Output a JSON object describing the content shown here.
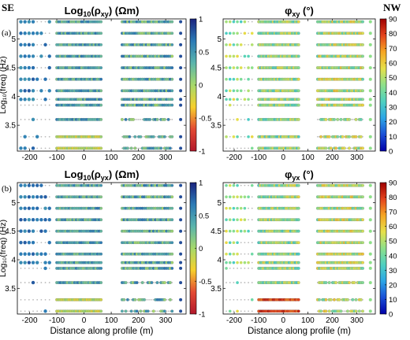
{
  "figure": {
    "orientation_left": "SE",
    "orientation_right": "NW",
    "row_labels": [
      "(a)",
      "(b)"
    ],
    "ylabel": "Log₁₀(freq) (Hz)",
    "xlabel": "Distance along profile (m)"
  },
  "colors": {
    "diverging": [
      "#b2182b",
      "#e34a33",
      "#f7d02c",
      "#a6d96a",
      "#5ab4ac",
      "#2c7bb6",
      "#1a237e"
    ],
    "jet": [
      "#0000a8",
      "#1a4fd6",
      "#2ca6e6",
      "#4fd0c0",
      "#8ee08a",
      "#e6e04a",
      "#f5a623",
      "#e4431d",
      "#9e0000"
    ],
    "inactive_dot": "#bbbbbb"
  },
  "panels": [
    {
      "id": "rho-xy",
      "title_main": "Log",
      "title_sub": "10",
      "title_arg": "(ρ",
      "title_arg_sub": "xy",
      "title_unit": ") (Ωm)",
      "colormap": "diverging"
    },
    {
      "id": "phi-xy",
      "title_main": "φ",
      "title_sub": "xy",
      "title_unit": " (°)",
      "colormap": "jet"
    },
    {
      "id": "rho-yx",
      "title_main": "Log",
      "title_sub": "10",
      "title_arg": "(ρ",
      "title_arg_sub": "yx",
      "title_unit": ") (Ωm)",
      "colormap": "diverging"
    },
    {
      "id": "phi-yx",
      "title_main": "φ",
      "title_sub": "yx",
      "title_unit": " (°)",
      "colormap": "jet"
    }
  ],
  "chart_data": [
    {
      "type": "scatter",
      "panel": "rho-xy",
      "title": "Log10(ρxy) (Ωm)",
      "xlabel": "",
      "ylabel": "Log10(freq) (Hz)",
      "xlim": [
        -245,
        375
      ],
      "ylim": [
        3.05,
        5.35
      ],
      "xticks": [
        "-200",
        "-100",
        "0",
        "100",
        "200",
        "300"
      ],
      "yticks": [
        "3.5",
        "4",
        "4.5",
        "5"
      ],
      "colorbar": {
        "min": -1,
        "max": 1,
        "ticks": [
          "-1",
          "-0.5",
          "0",
          "0.5",
          "1"
        ]
      },
      "frequencies": [
        5.3,
        5.1,
        4.9,
        4.7,
        4.5,
        4.3,
        4.1,
        3.95,
        3.85,
        3.6,
        3.3,
        3.1
      ],
      "stations_x": [
        -232,
        -212,
        -192,
        -172,
        -152,
        -132,
        -90,
        0,
        20,
        40,
        60,
        140,
        160,
        180,
        200,
        225,
        250,
        275,
        300,
        325,
        345
      ],
      "value_at_low_freq": 0.2
    },
    {
      "type": "scatter",
      "panel": "phi-xy",
      "title": "φxy (°)",
      "xlim": [
        -245,
        375
      ],
      "ylim": [
        3.05,
        5.35
      ],
      "xticks": [
        "-200",
        "-100",
        "0",
        "100",
        "200",
        "300"
      ],
      "yticks": [
        "3.5",
        "4",
        "4.5",
        "5"
      ],
      "colorbar": {
        "min": 0,
        "max": 90,
        "ticks": [
          "0",
          "10",
          "20",
          "30",
          "40",
          "50",
          "60",
          "70",
          "80",
          "90"
        ]
      },
      "frequencies": [
        5.3,
        5.1,
        4.9,
        4.7,
        4.5,
        4.3,
        4.1,
        3.95,
        3.85,
        3.6,
        3.3,
        3.1
      ],
      "typical_phase_deg": 45
    },
    {
      "type": "scatter",
      "panel": "rho-yx",
      "title": "Log10(ρyx) (Ωm)",
      "xlabel": "Distance along profile (m)",
      "ylabel": "Log10(freq) (Hz)",
      "xlim": [
        -245,
        375
      ],
      "ylim": [
        3.05,
        5.35
      ],
      "xticks": [
        "-200",
        "-100",
        "0",
        "100",
        "200",
        "300"
      ],
      "yticks": [
        "3.5",
        "4",
        "4.5",
        "5"
      ],
      "colorbar": {
        "min": -1,
        "max": 1,
        "ticks": [
          "-1",
          "-0.5",
          "0",
          "0.5",
          "1"
        ]
      },
      "frequencies": [
        5.3,
        5.1,
        4.9,
        4.7,
        4.5,
        4.3,
        4.1,
        3.95,
        3.85,
        3.6,
        3.3,
        3.1
      ]
    },
    {
      "type": "scatter",
      "panel": "phi-yx",
      "title": "φyx (°)",
      "xlabel": "Distance along profile (m)",
      "xlim": [
        -245,
        375
      ],
      "ylim": [
        3.05,
        5.35
      ],
      "xticks": [
        "-200",
        "-100",
        "0",
        "100",
        "200",
        "300"
      ],
      "yticks": [
        "3.5",
        "4",
        "4.5",
        "5"
      ],
      "colorbar": {
        "min": 0,
        "max": 90,
        "ticks": [
          "0",
          "10",
          "20",
          "30",
          "40",
          "50",
          "60",
          "70",
          "80",
          "90"
        ]
      },
      "frequencies": [
        5.3,
        5.1,
        4.9,
        4.7,
        4.5,
        4.3,
        4.1,
        3.95,
        3.85,
        3.6,
        3.3,
        3.1
      ]
    }
  ]
}
